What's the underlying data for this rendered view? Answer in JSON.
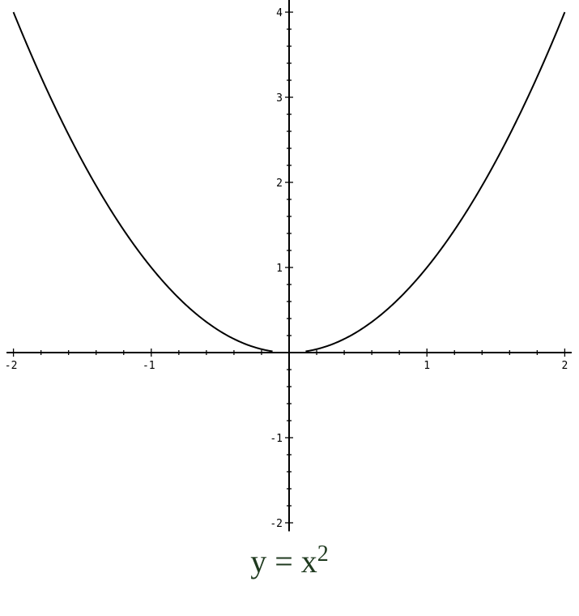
{
  "chart_data": {
    "type": "line",
    "function": "x^2",
    "series": [
      {
        "segments": [
          [
            -2,
            -0.12
          ],
          [
            0.12,
            2
          ]
        ],
        "color": "#000000"
      }
    ],
    "xlim": [
      -2.05,
      2.05
    ],
    "ylim": [
      -2.1,
      4.15
    ],
    "x_ticks": [
      -2,
      -1,
      1,
      2
    ],
    "x_tick_labels": [
      "-2",
      "-1",
      "1",
      "2"
    ],
    "y_ticks": [
      -2,
      -1,
      1,
      2,
      3,
      4
    ],
    "y_tick_labels": [
      "-2",
      "-1",
      "1",
      "2",
      "3",
      "4"
    ],
    "minor_tick_step": 0.2,
    "grid": false,
    "axes_through_origin": true
  },
  "caption": {
    "lhs": "y",
    "eq": "=",
    "base": "x",
    "exponent": "2"
  }
}
